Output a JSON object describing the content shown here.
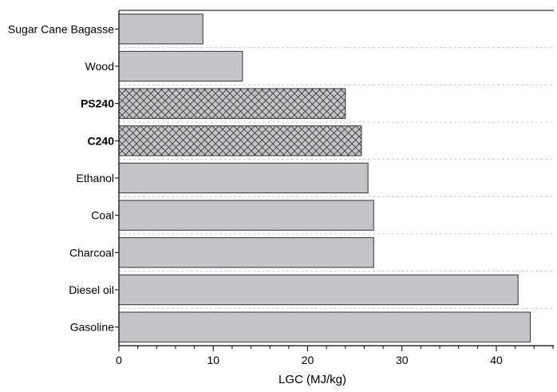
{
  "chart_data": {
    "type": "bar",
    "orientation": "horizontal",
    "categories": [
      "Sugar Cane Bagasse",
      "Wood",
      "PS240",
      "C240",
      "Ethanol",
      "Coal",
      "Charcoal",
      "Diesel oil",
      "Gasoline"
    ],
    "values": [
      8.9,
      13.1,
      24.0,
      25.7,
      26.4,
      27.0,
      27.0,
      42.3,
      43.6
    ],
    "highlighted": [
      "PS240",
      "C240"
    ],
    "xlabel": "LGC (MJ/kg)",
    "ylabel": "",
    "xlim": [
      0,
      46
    ],
    "xticks": [
      0,
      10,
      20,
      30,
      40
    ],
    "grid": "dashed horizontal",
    "colors": {
      "bar_fill": "#c3c3c8",
      "bar_stroke": "#333333",
      "hatch": "#333333",
      "grid": "#c8c8c8"
    }
  }
}
